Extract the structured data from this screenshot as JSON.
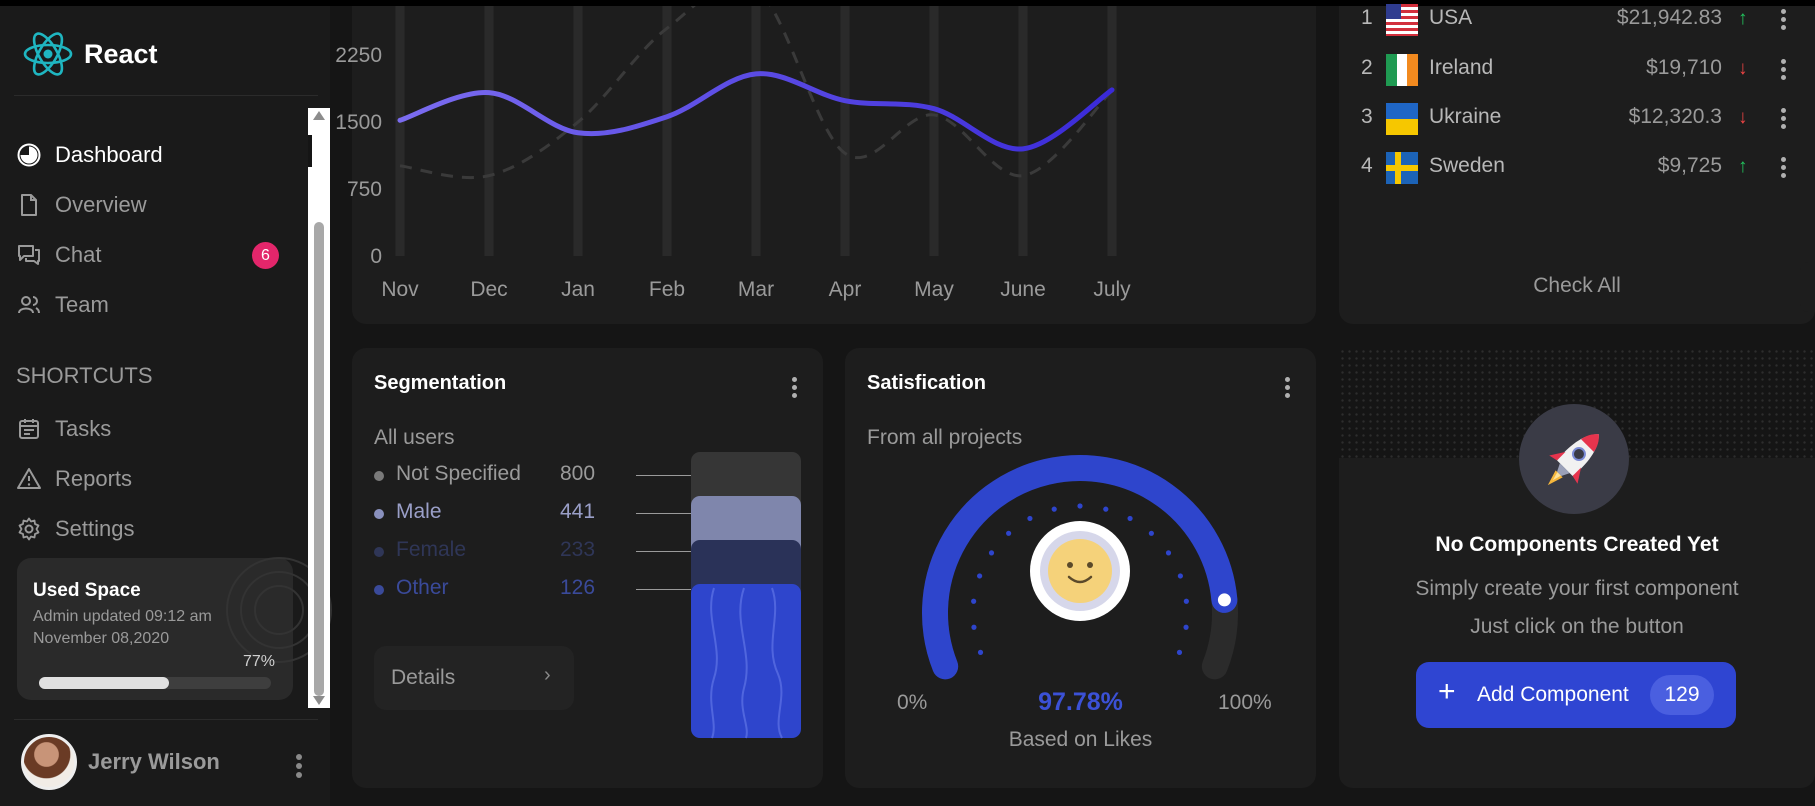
{
  "brand": {
    "name": "React"
  },
  "nav": {
    "items": [
      {
        "label": "Dashboard",
        "icon": "dashboard-icon"
      },
      {
        "label": "Overview",
        "icon": "document-icon"
      },
      {
        "label": "Chat",
        "icon": "chat-icon",
        "badge": "6"
      },
      {
        "label": "Team",
        "icon": "team-icon"
      }
    ],
    "shortcuts_title": "SHORTCUTS",
    "shortcuts": [
      {
        "label": "Tasks",
        "icon": "calendar-icon"
      },
      {
        "label": "Reports",
        "icon": "warning-icon"
      },
      {
        "label": "Settings",
        "icon": "gear-icon"
      }
    ]
  },
  "used_space": {
    "title": "Used Space",
    "line1": "Admin updated 09:12 am",
    "line2": "November 08,2020",
    "percent_label": "77%",
    "percent": 77
  },
  "user": {
    "name": "Jerry Wilson"
  },
  "chart_data": {
    "type": "line",
    "categories": [
      "Nov",
      "Dec",
      "Jan",
      "Feb",
      "Mar",
      "Apr",
      "May",
      "June",
      "July"
    ],
    "y_ticks": [
      "0",
      "750",
      "1500",
      "2250"
    ],
    "ylim": [
      0,
      2800
    ],
    "series": [
      {
        "values": [
          1520,
          1830,
          1380,
          1560,
          2040,
          1740,
          1650,
          1200,
          1860
        ],
        "color": "#6a5ee6",
        "style": "solid"
      },
      {
        "values": [
          1010,
          900,
          1500,
          2550,
          3000,
          1150,
          1580,
          900,
          1850
        ],
        "color": "#3a3a3a",
        "style": "dashed"
      }
    ]
  },
  "countries": {
    "rows": [
      {
        "rank": "1",
        "name": "USA",
        "value": "$21,942.83",
        "trend": "up",
        "flag": "usa-flag-icon"
      },
      {
        "rank": "2",
        "name": "Ireland",
        "value": "$19,710",
        "trend": "down",
        "flag": "ireland-flag-icon"
      },
      {
        "rank": "3",
        "name": "Ukraine",
        "value": "$12,320.3",
        "trend": "down",
        "flag": "ukraine-flag-icon"
      },
      {
        "rank": "4",
        "name": "Sweden",
        "value": "$9,725",
        "trend": "up",
        "flag": "sweden-flag-icon"
      }
    ],
    "check_all": "Check All",
    "up_color": "#22c55e",
    "down_color": "#ef4444"
  },
  "segmentation": {
    "title": "Segmentation",
    "subtitle": "All users",
    "rows": [
      {
        "label": "Not Specified",
        "value": "800",
        "color": "#9a9a9a",
        "dot": "#7a7a7a"
      },
      {
        "label": "Male",
        "value": "441",
        "color": "#9a9fc8",
        "dot": "#8990bd"
      },
      {
        "label": "Female",
        "value": "233",
        "color": "#2f3657",
        "dot": "#2f3657"
      },
      {
        "label": "Other",
        "value": "126",
        "color": "#3a4a9a",
        "dot": "#3a4a9a"
      }
    ],
    "details_label": "Details"
  },
  "satisfaction": {
    "title": "Satisfication",
    "subtitle": "From all projects",
    "percent_label": "97.78%",
    "percent": 97.78,
    "min_label": "0%",
    "max_label": "100%",
    "caption": "Based on Likes"
  },
  "empty_state": {
    "title": "No Components Created Yet",
    "line1": "Simply create your first component",
    "line2": "Just click on the button",
    "button_label": "Add Component",
    "count": "129"
  }
}
